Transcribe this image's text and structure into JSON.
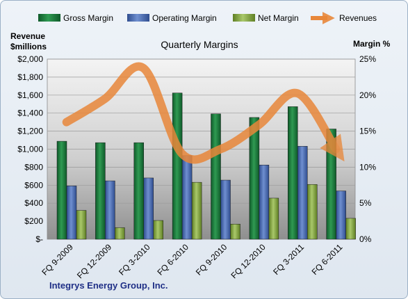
{
  "chart_data": {
    "type": "bar",
    "title": "Quarterly Margins",
    "company": "Integrys Energy Group, Inc.",
    "ylabel_left": [
      "Revenue",
      "$millions"
    ],
    "ylabel_right": "Margin %",
    "categories": [
      "FQ 9-2009",
      "FQ 12-2009",
      "FQ 3-2010",
      "FQ 6-2010",
      "FQ 9-2010",
      "FQ 12-2010",
      "FQ 3-2011",
      "FQ 6-2011"
    ],
    "left_axis": {
      "min": 0,
      "max": 2000,
      "step": 200,
      "tick_labels": [
        "$-",
        "$200",
        "$400",
        "$600",
        "$800",
        "$1,000",
        "$1,200",
        "$1,400",
        "$1,600",
        "$1,800",
        "$2,000"
      ]
    },
    "right_axis": {
      "min": 0,
      "max": 25,
      "step": 5,
      "tick_labels": [
        "0%",
        "5%",
        "10%",
        "15%",
        "20%",
        "25%"
      ]
    },
    "series": [
      {
        "name": "Gross Margin",
        "kind": "bar",
        "axis": "right",
        "color": "#1e7a3e",
        "values": [
          13.6,
          13.4,
          13.4,
          20.3,
          17.4,
          16.9,
          18.4,
          15.3
        ]
      },
      {
        "name": "Operating Margin",
        "kind": "bar",
        "axis": "right",
        "color": "#4f6fb3",
        "values": [
          7.4,
          8.1,
          8.5,
          11.6,
          8.2,
          10.3,
          12.9,
          6.7
        ]
      },
      {
        "name": "Net Margin",
        "kind": "bar",
        "axis": "right",
        "color": "#8db04a",
        "values": [
          4.0,
          1.6,
          2.6,
          7.9,
          2.1,
          5.7,
          7.6,
          2.9
        ]
      },
      {
        "name": "Revenues",
        "kind": "line",
        "axis": "left",
        "color": "#e8873a",
        "values": [
          1300,
          1560,
          1900,
          950,
          1000,
          1270,
          1620,
          1000
        ]
      }
    ],
    "grid": true,
    "legend_position": "top"
  }
}
